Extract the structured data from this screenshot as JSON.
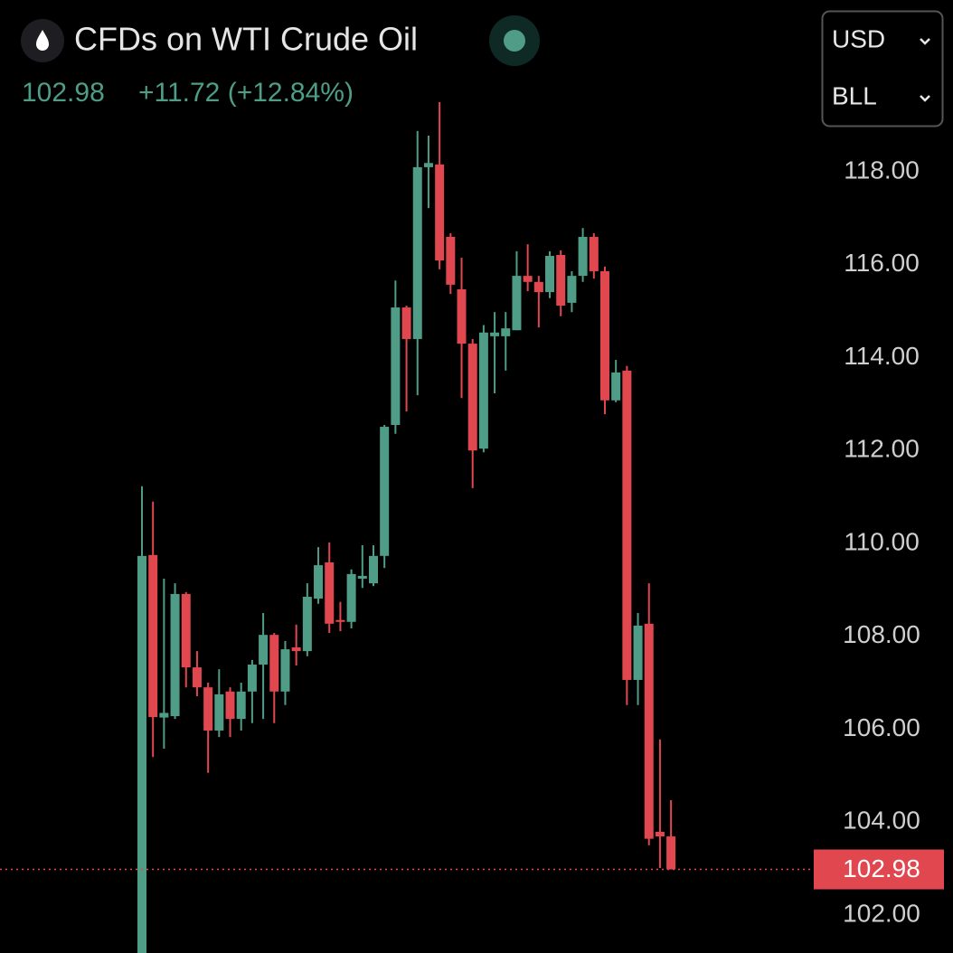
{
  "chart_data": {
    "type": "candlestick",
    "title": "CFDs on WTI Crude Oil",
    "quote_price": "102.98",
    "quote_change": "+11.72 (+12.84%)",
    "currency": "USD",
    "unit": "BLL",
    "up_color": "#4f9d86",
    "down_color": "#e0474f",
    "ylim": [
      101.18,
      121.7
    ],
    "yticks": [
      {
        "value": 102,
        "label": "102.00"
      },
      {
        "value": 104,
        "label": "104.00"
      },
      {
        "value": 106,
        "label": "106.00"
      },
      {
        "value": 108,
        "label": "108.00"
      },
      {
        "value": 110,
        "label": "110.00"
      },
      {
        "value": 112,
        "label": "112.00"
      },
      {
        "value": 114,
        "label": "114.00"
      },
      {
        "value": 116,
        "label": "116.00"
      },
      {
        "value": 118,
        "label": "118.00"
      }
    ],
    "last_price": 102.98,
    "series": {
      "open": [
        101.0,
        109.75,
        106.25,
        106.28,
        108.91,
        107.33,
        106.9,
        105.97,
        106.81,
        106.22,
        106.81,
        107.39,
        108.03,
        106.81,
        107.76,
        107.68,
        108.81,
        109.59,
        108.35,
        108.31,
        109.24,
        109.14,
        109.73,
        112.55,
        115.08,
        114.4,
        118.1,
        118.16,
        116.6,
        115.47,
        114.3,
        112.04,
        114.46,
        114.46,
        114.59,
        115.76,
        115.63,
        115.41,
        116.21,
        115.18,
        115.76,
        116.6,
        115.86,
        113.08,
        113.72,
        107.06,
        108.27,
        103.79,
        103.69
      ],
      "high": [
        111.23,
        110.9,
        109.24,
        109.14,
        108.95,
        107.68,
        107.0,
        107.29,
        106.9,
        107.0,
        107.49,
        108.5,
        108.07,
        107.9,
        108.25,
        109.14,
        109.92,
        110.02,
        108.74,
        109.44,
        109.96,
        109.96,
        112.55,
        115.66,
        115.12,
        118.88,
        118.78,
        119.5,
        116.68,
        116.15,
        114.4,
        114.7,
        114.98,
        114.98,
        116.29,
        116.44,
        115.76,
        116.29,
        116.31,
        115.86,
        116.79,
        116.68,
        115.96,
        113.95,
        113.82,
        108.5,
        109.14,
        105.78,
        104.47
      ],
      "low": [
        100.8,
        105.4,
        105.58,
        106.22,
        106.9,
        106.71,
        105.06,
        105.83,
        105.83,
        105.97,
        106.13,
        106.22,
        106.13,
        106.52,
        107.37,
        107.57,
        108.7,
        108.07,
        108.11,
        108.17,
        109.04,
        109.08,
        109.47,
        112.36,
        112.84,
        113.19,
        117.22,
        115.9,
        115.37,
        113.13,
        111.19,
        111.96,
        113.23,
        113.72,
        114.59,
        115.43,
        114.65,
        115.28,
        114.89,
        114.98,
        115.63,
        115.7,
        112.78,
        113.04,
        106.52,
        106.52,
        103.5,
        103.01,
        102.98
      ],
      "close": [
        109.73,
        106.26,
        106.35,
        108.91,
        107.33,
        106.9,
        105.97,
        106.75,
        106.22,
        106.81,
        107.39,
        108.03,
        106.81,
        107.72,
        107.68,
        108.85,
        109.53,
        108.27,
        108.31,
        109.34,
        109.3,
        109.73,
        112.51,
        115.08,
        114.4,
        118.1,
        118.19,
        116.09,
        115.57,
        114.3,
        112.0,
        114.54,
        114.54,
        114.63,
        115.76,
        115.63,
        115.41,
        116.19,
        115.12,
        115.76,
        116.6,
        115.86,
        113.08,
        113.68,
        107.06,
        108.23,
        103.64,
        103.69,
        102.98
      ]
    }
  }
}
